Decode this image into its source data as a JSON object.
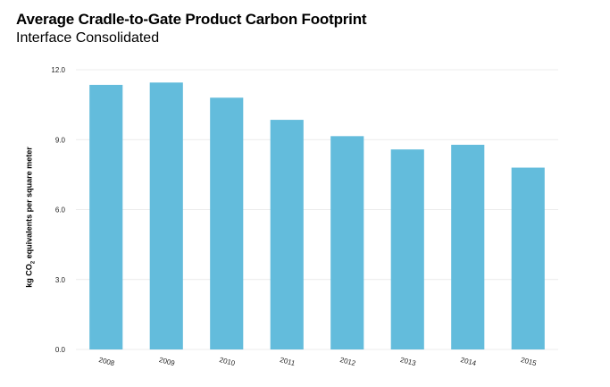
{
  "chart_data": {
    "type": "bar",
    "title": "Average Cradle-to-Gate Product Carbon Footprint",
    "subtitle": "Interface Consolidated",
    "ylabel_parts": [
      "kg CO",
      "2",
      " equivalents per square meter"
    ],
    "categories": [
      "2008",
      "2009",
      "2010",
      "2011",
      "2012",
      "2013",
      "2014",
      "2015"
    ],
    "values": [
      11.35,
      11.45,
      10.8,
      9.85,
      9.15,
      8.58,
      8.78,
      7.8
    ],
    "yticks": [
      "0.0",
      "3.0",
      "6.0",
      "9.0",
      "12.0"
    ],
    "ylim": [
      0,
      12
    ],
    "grid": true,
    "bar_color": "#63bcdc"
  }
}
